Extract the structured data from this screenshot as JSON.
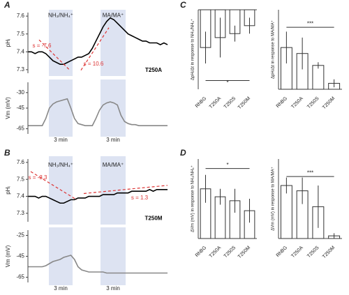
{
  "chart_data": [
    {
      "type": "line",
      "panel": "A",
      "ylabel": "pHᵢ",
      "ylim": [
        7.28,
        7.62
      ],
      "yticks": [
        7.3,
        7.4,
        7.5,
        7.6
      ],
      "color": "#000000",
      "values": [
        7.4,
        7.4,
        7.39,
        7.4,
        7.4,
        7.39,
        7.37,
        7.35,
        7.34,
        7.33,
        7.33,
        7.34,
        7.35,
        7.36,
        7.37,
        7.37,
        7.38,
        7.39,
        7.42,
        7.46,
        7.5,
        7.54,
        7.57,
        7.59,
        7.58,
        7.56,
        7.54,
        7.52,
        7.5,
        7.49,
        7.48,
        7.47,
        7.46,
        7.46,
        7.45,
        7.45,
        7.45,
        7.44,
        7.45,
        7.44
      ],
      "annotations": [
        "NH₃/NH₄⁺",
        "MA/MA⁺",
        "s = -7.6",
        "s = 10.6",
        "T250A"
      ]
    },
    {
      "type": "line",
      "ylabel": "Vm (mV)",
      "ylim": [
        -70,
        -20
      ],
      "yticks": [
        -65,
        -45,
        -30
      ],
      "color": "#888888",
      "values": [
        -62,
        -62,
        -62,
        -62,
        -62,
        -55,
        -45,
        -41,
        -39,
        -38,
        -37,
        -36,
        -45,
        -55,
        -60,
        -61,
        -62,
        -62,
        -62,
        -55,
        -47,
        -42,
        -40,
        -39,
        -40,
        -42,
        -52,
        -58,
        -60,
        -61,
        -61,
        -62,
        -62,
        -62,
        -62,
        -62,
        -62,
        -62,
        -62,
        -62
      ],
      "annotations": [
        "3 min",
        "3 min"
      ]
    },
    {
      "type": "line",
      "panel": "B",
      "ylabel": "pHᵢ",
      "ylim": [
        7.25,
        7.62
      ],
      "yticks": [
        7.3,
        7.4,
        7.5,
        7.6
      ],
      "color": "#000000",
      "values": [
        7.4,
        7.4,
        7.4,
        7.39,
        7.4,
        7.4,
        7.39,
        7.38,
        7.37,
        7.36,
        7.36,
        7.37,
        7.38,
        7.38,
        7.39,
        7.39,
        7.39,
        7.4,
        7.4,
        7.4,
        7.4,
        7.41,
        7.41,
        7.41,
        7.41,
        7.42,
        7.42,
        7.42,
        7.42,
        7.43,
        7.43,
        7.43,
        7.43,
        7.43,
        7.44,
        7.43,
        7.44,
        7.44,
        7.44,
        7.44
      ],
      "annotations": [
        "NH₃/NH₄⁺",
        "MA/MA⁺",
        "s = -3.3",
        "s = 1.3",
        "T250M"
      ]
    },
    {
      "type": "line",
      "ylabel": "Vm (mV)",
      "ylim": [
        -70,
        -20
      ],
      "yticks": [
        -65,
        -45,
        -25
      ],
      "color": "#888888",
      "values": [
        -55,
        -55,
        -55,
        -55,
        -55,
        -54,
        -52,
        -50,
        -49,
        -48,
        -46,
        -45,
        -44,
        -48,
        -55,
        -58,
        -59,
        -60,
        -60,
        -60,
        -60,
        -60,
        -61,
        -61,
        -61,
        -61,
        -61,
        -61,
        -61,
        -61,
        -61,
        -61,
        -61,
        -61,
        -61,
        -61,
        -61,
        -61,
        -61,
        -61
      ],
      "annotations": [
        "3 min",
        "3 min"
      ]
    },
    {
      "type": "bar",
      "panel": "C",
      "ylabel": "ΔpHᵢ/Δt in response to NH₃/NH₄⁺",
      "ylim": [
        -20,
        0
      ],
      "categories": [
        "RhBG",
        "T250A",
        "T250S",
        "T250M"
      ],
      "values": [
        -9.5,
        -7,
        -6,
        -4
      ],
      "errors": [
        4,
        5,
        2,
        2
      ],
      "annotations": [
        "*"
      ]
    },
    {
      "type": "bar",
      "ylabel": "ΔpHᵢ/Δt in response to MA/MA⁺",
      "ylim": [
        0,
        20
      ],
      "categories": [
        "RhBG",
        "T250A",
        "T250S",
        "T250M"
      ],
      "values": [
        10.5,
        9,
        6,
        1.5
      ],
      "errors": [
        4,
        4,
        0.8,
        1
      ],
      "annotations": [
        "***"
      ]
    },
    {
      "type": "bar",
      "panel": "D",
      "ylabel": "ΔVm (mV) in response to NH₃/NH₄⁺",
      "ylim": [
        0,
        40
      ],
      "categories": [
        "RhBG",
        "T250A",
        "T250S",
        "T250M"
      ],
      "values": [
        25,
        21,
        19,
        14
      ],
      "errors": [
        7,
        4,
        6,
        6
      ],
      "annotations": [
        "*"
      ]
    },
    {
      "type": "bar",
      "ylabel": "ΔVm (mV) in response to MA/MA⁺",
      "ylim": [
        0,
        30
      ],
      "categories": [
        "RhBG",
        "T250A",
        "T250S",
        "T250M"
      ],
      "values": [
        20,
        18,
        12,
        1
      ],
      "errors": [
        3,
        5,
        8,
        1
      ],
      "annotations": [
        "***"
      ]
    }
  ]
}
